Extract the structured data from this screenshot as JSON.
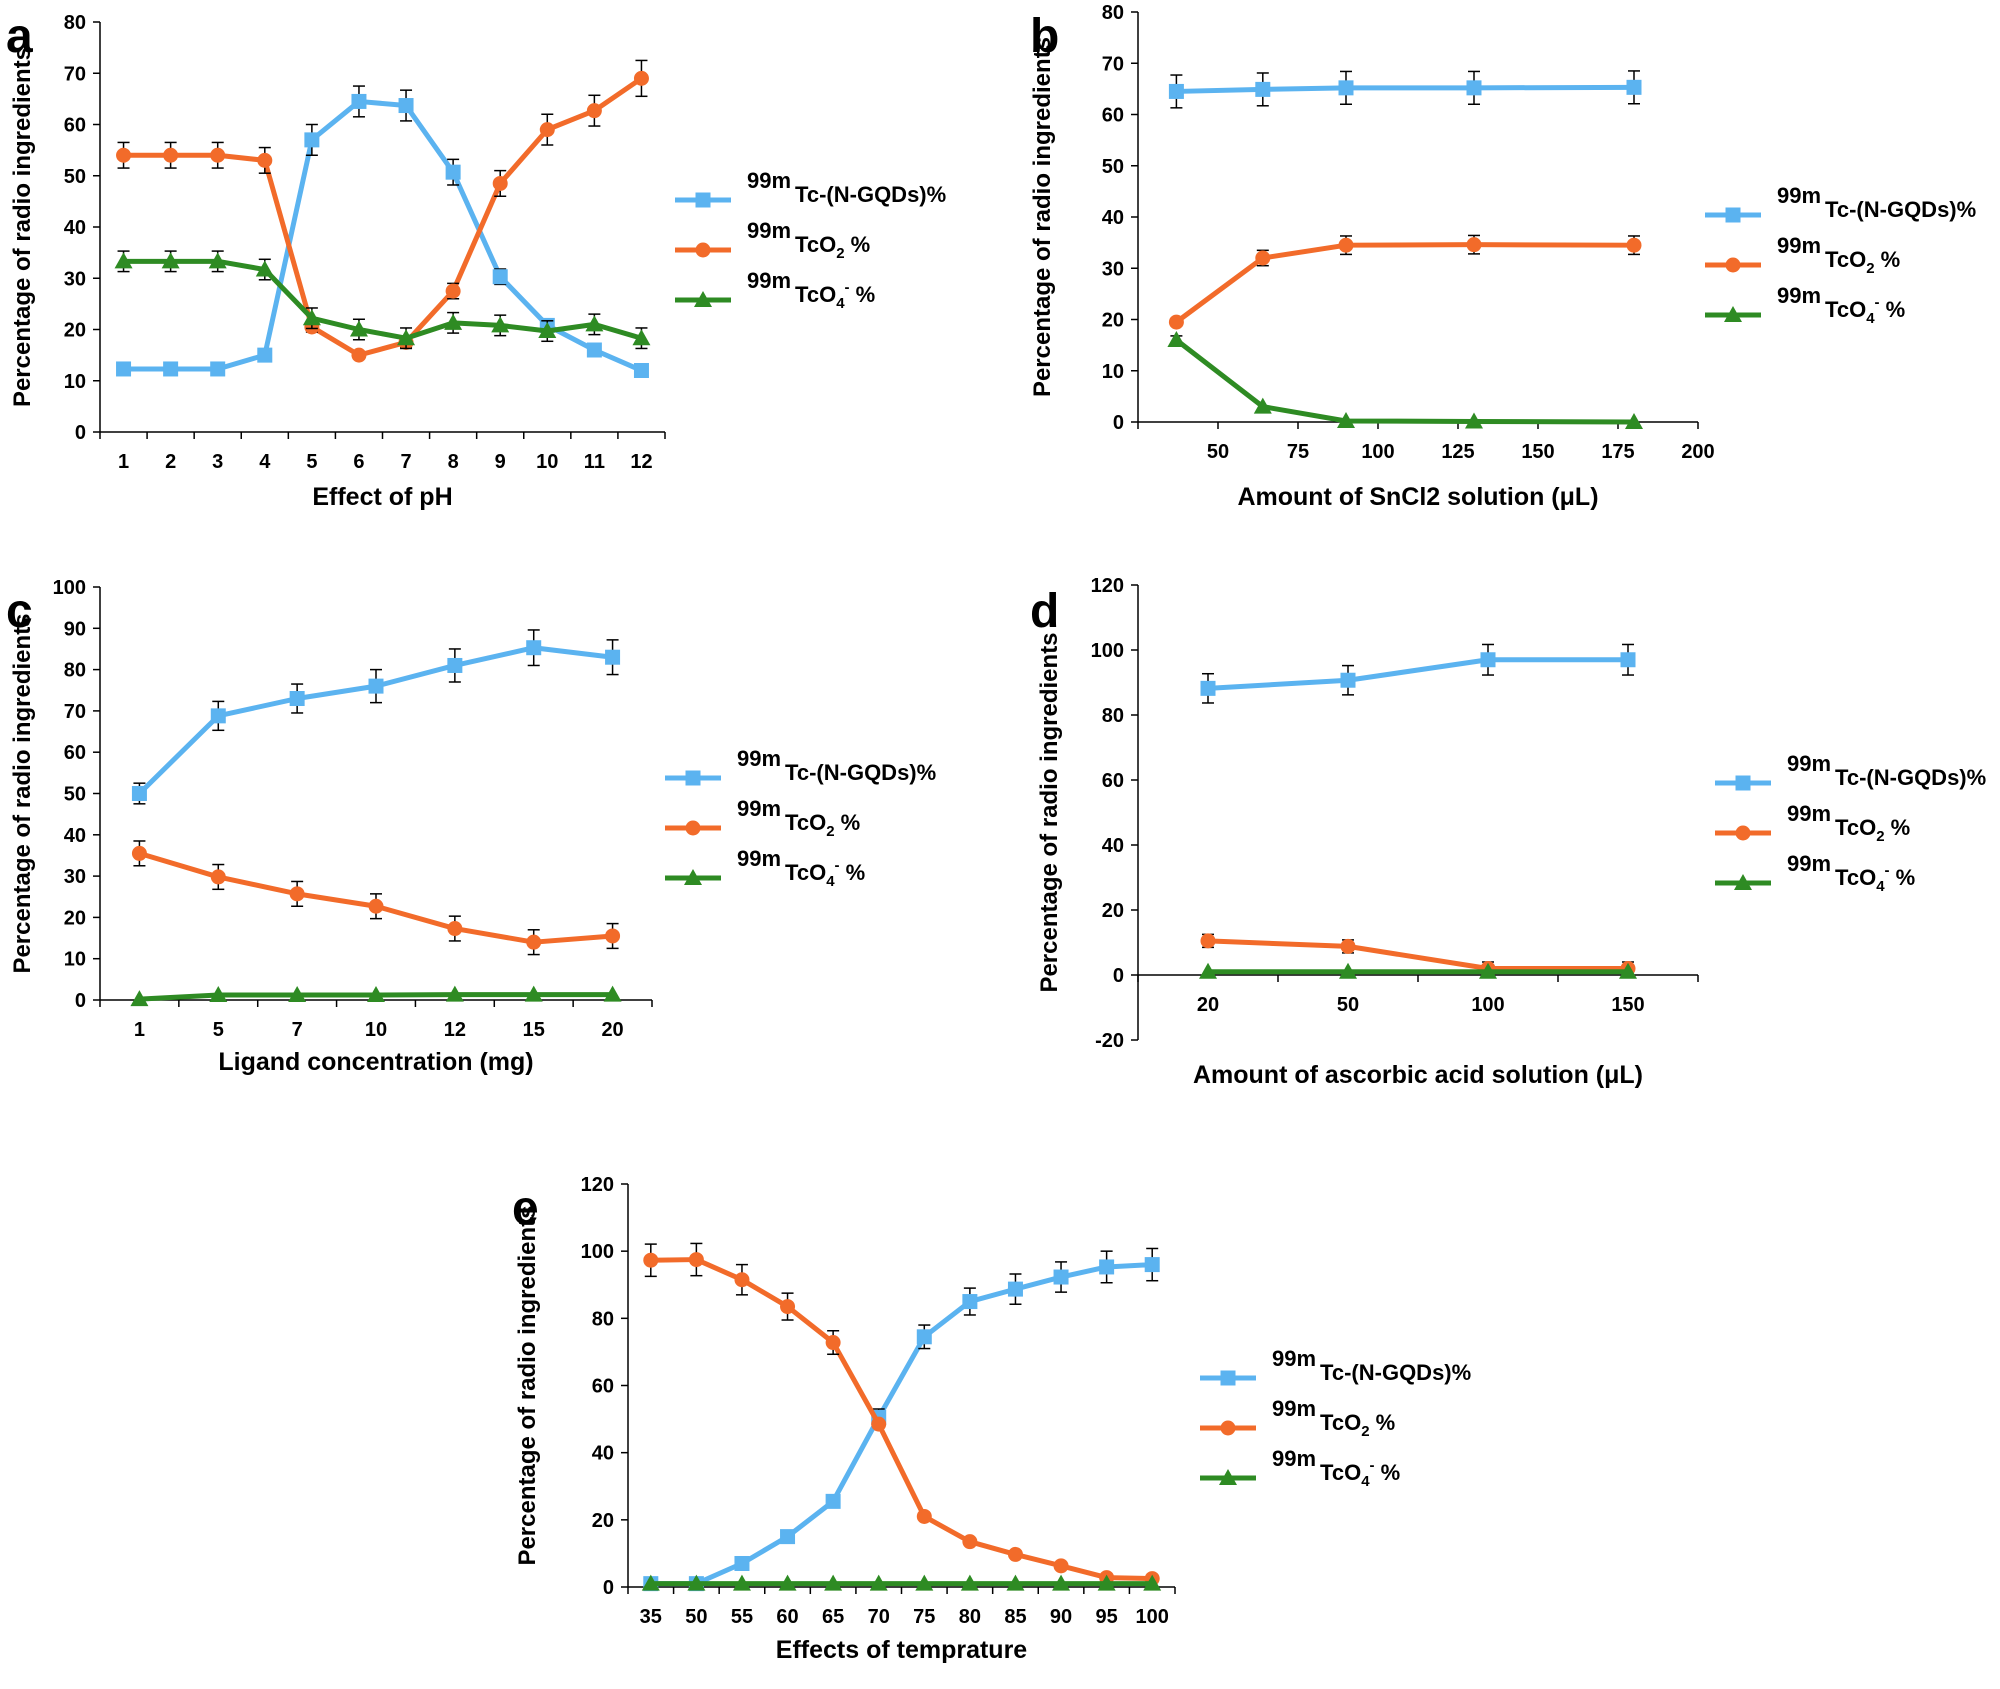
{
  "colors": {
    "tc_ngqds": "#5BB3F0",
    "tco2": "#F26B2A",
    "tco4": "#2E8B23",
    "axis": "#000000",
    "error_bar": "#000000"
  },
  "legend_labels": {
    "isotope": "99m",
    "ngqds": "Tc-(N-GQDs)%",
    "tco2_main": "TcO",
    "tco2_sub": "2",
    "tco2_tail": " %",
    "tco4_main": "TcO",
    "tco4_sub": "4",
    "tco4_sup": "-",
    "tco4_tail": " %"
  },
  "chart_data": [
    {
      "panel": "a",
      "type": "line",
      "xlabel": "Effect of pH",
      "ylabel": "Percentage of radio ingredients",
      "x_scale": "category",
      "categories": [
        "1",
        "2",
        "3",
        "4",
        "5",
        "6",
        "7",
        "8",
        "9",
        "10",
        "11",
        "12"
      ],
      "ylim": [
        0,
        80
      ],
      "yticks": [
        0,
        10,
        20,
        30,
        40,
        50,
        60,
        70,
        80
      ],
      "legend": "right",
      "series": [
        {
          "name": "99mTc-(N-GQDs)%",
          "marker": "square",
          "values": [
            12.3,
            12.3,
            12.3,
            15,
            57,
            64.5,
            63.7,
            50.7,
            30.3,
            20.8,
            16,
            12
          ],
          "errors": [
            0,
            0,
            0,
            0,
            3,
            3,
            3,
            2.5,
            1.5,
            1,
            1,
            0
          ]
        },
        {
          "name": "99mTcO2 %",
          "marker": "circle",
          "values": [
            54,
            54,
            54,
            53,
            20.5,
            15,
            17.5,
            27.5,
            48.5,
            59,
            62.7,
            69
          ],
          "errors": [
            2.5,
            2.5,
            2.5,
            2.5,
            1,
            0,
            1,
            1.5,
            2.5,
            3,
            3,
            3.5
          ]
        },
        {
          "name": "99mTcO4- %",
          "marker": "triangle",
          "values": [
            33.3,
            33.3,
            33.3,
            31.7,
            22.2,
            20,
            18.3,
            21.3,
            20.8,
            19.7,
            21,
            18.3
          ],
          "errors": [
            2,
            2,
            2,
            2,
            2,
            2,
            2,
            2,
            2,
            2,
            2,
            2
          ]
        }
      ]
    },
    {
      "panel": "b",
      "type": "line",
      "xlabel": "Amount of SnCl2 solution (μL)",
      "ylabel": "Percentage of radio ingredients",
      "x_scale": "linear",
      "xlim": [
        25,
        200
      ],
      "xticks": [
        50,
        75,
        100,
        125,
        150,
        175,
        200
      ],
      "x": [
        37,
        64,
        90,
        130,
        180
      ],
      "ylim": [
        0,
        80
      ],
      "yticks": [
        0,
        10,
        20,
        30,
        40,
        50,
        60,
        70,
        80
      ],
      "legend": "right",
      "series": [
        {
          "name": "99mTc-(N-GQDs)%",
          "marker": "square",
          "values": [
            64.5,
            64.9,
            65.2,
            65.2,
            65.3
          ],
          "errors": [
            3.2,
            3.2,
            3.2,
            3.2,
            3.2
          ]
        },
        {
          "name": "99mTcO2 %",
          "marker": "circle",
          "values": [
            19.5,
            32,
            34.5,
            34.6,
            34.5
          ],
          "errors": [
            0,
            1.5,
            1.8,
            1.8,
            1.8
          ]
        },
        {
          "name": "99mTcO4- %",
          "marker": "triangle",
          "values": [
            16,
            3,
            0.2,
            0.1,
            0
          ],
          "errors": [
            0.8,
            0,
            0,
            0,
            0
          ]
        }
      ]
    },
    {
      "panel": "c",
      "type": "line",
      "xlabel": "Ligand concentration (mg)",
      "ylabel": "Percentage of radio ingredients",
      "x_scale": "category",
      "categories": [
        "1",
        "5",
        "7",
        "10",
        "12",
        "15",
        "20"
      ],
      "ylim": [
        0,
        100
      ],
      "yticks": [
        0,
        10,
        20,
        30,
        40,
        50,
        60,
        70,
        80,
        90,
        100
      ],
      "legend": "right",
      "series": [
        {
          "name": "99mTc-(N-GQDs)%",
          "marker": "square",
          "values": [
            50,
            68.8,
            73,
            76,
            81,
            85.3,
            83
          ],
          "errors": [
            2.5,
            3.5,
            3.5,
            4,
            4,
            4.3,
            4.2
          ]
        },
        {
          "name": "99mTcO2 %",
          "marker": "circle",
          "values": [
            35.5,
            29.8,
            25.7,
            22.7,
            17.3,
            14,
            15.5
          ],
          "errors": [
            3,
            3,
            3,
            3,
            3,
            3,
            3
          ]
        },
        {
          "name": "99mTcO4- %",
          "marker": "triangle",
          "values": [
            0.2,
            1.2,
            1.2,
            1.2,
            1.3,
            1.3,
            1.3
          ],
          "errors": [
            0,
            0,
            0,
            0,
            0,
            0,
            0
          ]
        }
      ]
    },
    {
      "panel": "d",
      "type": "line",
      "xlabel": "Amount of ascorbic acid solution (μL)",
      "ylabel": "Percentage of radio ingredients",
      "x_scale": "category",
      "categories": [
        "20",
        "50",
        "100",
        "150"
      ],
      "ylim": [
        -20,
        120
      ],
      "yticks": [
        -20,
        0,
        20,
        40,
        60,
        80,
        100,
        120
      ],
      "legend": "right",
      "series": [
        {
          "name": "99mTc-(N-GQDs)%",
          "marker": "square",
          "values": [
            88.2,
            90.7,
            97,
            97
          ],
          "errors": [
            4.5,
            4.5,
            4.7,
            4.7
          ]
        },
        {
          "name": "99mTcO2 %",
          "marker": "circle",
          "values": [
            10.5,
            8.8,
            2,
            2
          ],
          "errors": [
            2,
            2,
            2,
            2
          ]
        },
        {
          "name": "99mTcO4- %",
          "marker": "triangle",
          "values": [
            1,
            1,
            1,
            1
          ],
          "errors": [
            0,
            0,
            0,
            0
          ]
        }
      ]
    },
    {
      "panel": "e",
      "type": "line",
      "xlabel": "Effects of temprature",
      "ylabel": "Percentage of radio ingredients",
      "x_scale": "category",
      "categories": [
        "35",
        "50",
        "55",
        "60",
        "65",
        "70",
        "75",
        "80",
        "85",
        "90",
        "95",
        "100"
      ],
      "ylim": [
        0,
        120
      ],
      "yticks": [
        0,
        20,
        40,
        60,
        80,
        100,
        120
      ],
      "legend": "right",
      "series": [
        {
          "name": "99mTc-(N-GQDs)%",
          "marker": "square",
          "values": [
            1,
            1,
            7,
            15,
            25.5,
            50.5,
            74.5,
            85,
            88.7,
            92.3,
            95.3,
            96
          ],
          "errors": [
            0,
            0,
            0,
            0,
            1.5,
            2.5,
            3.5,
            4,
            4.5,
            4.5,
            4.7,
            4.8
          ]
        },
        {
          "name": "99mTcO2 %",
          "marker": "circle",
          "values": [
            97.3,
            97.5,
            91.5,
            83.5,
            72.8,
            48.5,
            21,
            13.5,
            9.7,
            6.3,
            2.8,
            2.5
          ],
          "errors": [
            4.8,
            4.8,
            4.5,
            4,
            3.5,
            0,
            0,
            0,
            0,
            0,
            0,
            0
          ]
        },
        {
          "name": "99mTcO4- %",
          "marker": "triangle",
          "values": [
            1,
            1,
            1,
            1,
            1,
            1,
            1,
            1,
            1,
            1,
            1,
            1
          ],
          "errors": [
            0,
            0,
            0,
            0,
            0,
            0,
            0,
            0,
            0,
            0,
            0,
            0
          ]
        }
      ]
    }
  ]
}
